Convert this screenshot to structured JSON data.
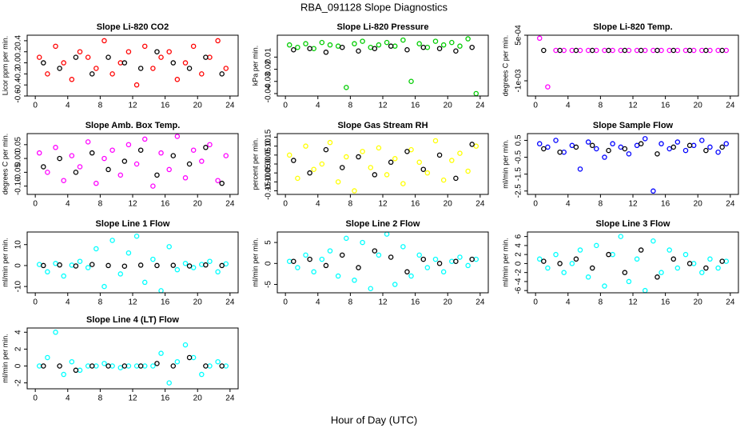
{
  "title": "RBA_091128  Slope Diagnostics",
  "xlabel": "Hour of Day (UTC)",
  "chart_data": [
    {
      "type": "scatter",
      "title": "Slope Li-820 CO2",
      "ylabel": "Licor ppm per min.",
      "xlim": [
        -1,
        25
      ],
      "xticks": [
        0,
        4,
        8,
        12,
        16,
        20,
        24
      ],
      "ylim": [
        -0.6,
        0.5
      ],
      "yticks": [
        -0.6,
        -0.4,
        -0.2,
        {
          "value": 0,
          "label": "0.0"
        },
        0.2,
        0.4
      ],
      "series": [
        {
          "color": "#ff0000",
          "x": [
            0.5,
            1.5,
            2.5,
            3.5,
            4.5,
            5.5,
            6.5,
            7.5,
            8.5,
            9.5,
            10.5,
            11.5,
            12.5,
            13.5,
            14.5,
            15.5,
            16.5,
            17.5,
            18.5,
            19.5,
            20.5,
            21.5,
            22.5,
            23.5
          ],
          "values": [
            0.1,
            -0.2,
            0.3,
            0.0,
            -0.3,
            0.2,
            0.1,
            -0.1,
            0.4,
            -0.2,
            0.0,
            0.2,
            -0.4,
            0.3,
            -0.1,
            0.1,
            0.2,
            -0.3,
            0.0,
            0.3,
            -0.2,
            0.1,
            0.4,
            -0.1
          ]
        },
        {
          "color": "#000000",
          "x": [
            1,
            3,
            5,
            7,
            9,
            11,
            13,
            15,
            17,
            19,
            21,
            23
          ],
          "values": [
            0.0,
            -0.1,
            0.1,
            -0.2,
            0.1,
            0.0,
            -0.1,
            0.2,
            0.0,
            -0.1,
            0.1,
            -0.2
          ]
        }
      ]
    },
    {
      "type": "scatter",
      "title": "Slope Li-820 Pressure",
      "ylabel": "kPa per min.",
      "xlim": [
        -1,
        25
      ],
      "xticks": [
        0,
        4,
        8,
        12,
        16,
        20,
        24
      ],
      "ylim": [
        -0.042,
        0.008
      ],
      "yticks": [
        -0.04,
        -0.03,
        -0.02,
        -0.01
      ],
      "series": [
        {
          "color": "#00cc00",
          "x": [
            0.5,
            1.5,
            2.5,
            3.5,
            4.5,
            5.5,
            6.5,
            7.5,
            8.5,
            9.5,
            10.5,
            11.5,
            12.5,
            13.5,
            14.5,
            15.5,
            16.5,
            17.5,
            18.5,
            19.5,
            20.5,
            21.5,
            22.5,
            23.5
          ],
          "values": [
            0.0,
            -0.002,
            0.001,
            -0.003,
            0.002,
            0.0,
            -0.001,
            -0.035,
            0.001,
            0.003,
            -0.002,
            0.0,
            0.002,
            -0.001,
            0.004,
            -0.03,
            0.001,
            -0.002,
            0.003,
            0.0,
            0.002,
            -0.001,
            0.005,
            -0.04
          ]
        },
        {
          "color": "#000000",
          "x": [
            1,
            3,
            5,
            7,
            9,
            11,
            13,
            15,
            17,
            19,
            21,
            23
          ],
          "values": [
            -0.004,
            -0.003,
            -0.006,
            -0.002,
            -0.005,
            -0.003,
            -0.001,
            -0.004,
            -0.002,
            -0.003,
            -0.005,
            -0.002
          ]
        }
      ]
    },
    {
      "type": "scatter",
      "title": "Slope Li-820 Temp.",
      "ylabel": "degrees C per min.",
      "xlim": [
        -1,
        25
      ],
      "xticks": [
        0,
        4,
        8,
        12,
        16,
        20,
        24
      ],
      "ylim": [
        -0.0015,
        0.0005
      ],
      "yticks": [
        {
          "value": -0.001,
          "label": "-1e-03"
        },
        {
          "value": 0.0005,
          "label": "5e-04"
        }
      ],
      "series": [
        {
          "color": "#ff00ff",
          "x": [
            0.5,
            1.5,
            2.5,
            3.5,
            4.5,
            5.5,
            6.5,
            7.5,
            8.5,
            9.5,
            10.5,
            11.5,
            12.5,
            13.5,
            14.5,
            15.5,
            16.5,
            17.5,
            18.5,
            19.5,
            20.5,
            21.5,
            22.5,
            23.5
          ],
          "values": [
            0.0004,
            -0.0012,
            0,
            0,
            0,
            0,
            0,
            0,
            0,
            0,
            0,
            0,
            0,
            0,
            0,
            0,
            0,
            0,
            0,
            0,
            0,
            0,
            0,
            0
          ]
        },
        {
          "color": "#000000",
          "x": [
            1,
            3,
            5,
            7,
            9,
            11,
            13,
            15,
            17,
            19,
            21,
            23
          ],
          "values": [
            0,
            0,
            0,
            0,
            0,
            0,
            0,
            0,
            0,
            0,
            0,
            0
          ]
        }
      ]
    },
    {
      "type": "scatter",
      "title": "Slope Amb. Box Temp.",
      "ylabel": "degrees C per min.",
      "xlim": [
        -1,
        25
      ],
      "xticks": [
        0,
        4,
        8,
        12,
        16,
        20,
        24
      ],
      "ylim": [
        -0.13,
        0.09
      ],
      "yticks": [
        {
          "value": -0.1,
          "label": "-0.10"
        },
        -0.05,
        {
          "value": 0,
          "label": "0.00"
        },
        0.05
      ],
      "series": [
        {
          "color": "#ff00ff",
          "x": [
            0.5,
            1.5,
            2.5,
            3.5,
            4.5,
            5.5,
            6.5,
            7.5,
            8.5,
            9.5,
            10.5,
            11.5,
            12.5,
            13.5,
            14.5,
            15.5,
            16.5,
            17.5,
            18.5,
            19.5,
            20.5,
            21.5,
            22.5,
            23.5
          ],
          "values": [
            0.02,
            -0.05,
            0.04,
            -0.08,
            0.01,
            -0.03,
            0.06,
            -0.09,
            0.0,
            0.03,
            -0.06,
            0.05,
            -0.02,
            0.07,
            -0.1,
            0.02,
            -0.04,
            0.08,
            -0.07,
            0.03,
            -0.01,
            0.05,
            -0.08,
            0.01
          ]
        },
        {
          "color": "#000000",
          "x": [
            1,
            3,
            5,
            7,
            9,
            11,
            13,
            15,
            17,
            19,
            21,
            23
          ],
          "values": [
            -0.03,
            0.0,
            -0.05,
            0.02,
            -0.04,
            -0.01,
            0.03,
            -0.06,
            0.01,
            -0.02,
            0.04,
            -0.09
          ]
        }
      ]
    },
    {
      "type": "scatter",
      "title": "Slope Gas Stream RH",
      "ylabel": "percent per min.",
      "xlim": [
        -1,
        25
      ],
      "xticks": [
        0,
        4,
        8,
        12,
        16,
        20,
        24
      ],
      "ylim": [
        -0.17,
        0.17
      ],
      "yticks": [
        -0.15,
        {
          "value": -0.1,
          "label": "-0.10"
        },
        -0.05,
        {
          "value": 0,
          "label": "0.00"
        },
        0.05,
        {
          "value": 0.1,
          "label": "0.10"
        },
        0.15
      ],
      "series": [
        {
          "color": "#ffff00",
          "x": [
            0.5,
            1.5,
            2.5,
            3.5,
            4.5,
            5.5,
            6.5,
            7.5,
            8.5,
            9.5,
            10.5,
            11.5,
            12.5,
            13.5,
            14.5,
            15.5,
            16.5,
            17.5,
            18.5,
            19.5,
            20.5,
            21.5,
            22.5,
            23.5
          ],
          "values": [
            0.05,
            -0.08,
            0.1,
            -0.03,
            0.0,
            0.12,
            -0.1,
            0.04,
            -0.15,
            0.07,
            -0.02,
            0.09,
            -0.06,
            0.03,
            -0.11,
            0.08,
            0.01,
            -0.05,
            0.13,
            -0.09,
            0.02,
            0.06,
            -0.04,
            0.1
          ]
        },
        {
          "color": "#000000",
          "x": [
            1,
            3,
            5,
            7,
            9,
            11,
            13,
            15,
            17,
            19,
            21,
            23
          ],
          "values": [
            0.02,
            -0.05,
            0.08,
            -0.02,
            0.04,
            -0.06,
            0.01,
            0.07,
            -0.03,
            0.05,
            -0.08,
            0.11
          ]
        }
      ]
    },
    {
      "type": "scatter",
      "title": "Slope Sample Flow",
      "ylabel": "ml/min per min.",
      "xlim": [
        -1,
        25
      ],
      "xticks": [
        0,
        4,
        8,
        12,
        16,
        20,
        24
      ],
      "ylim": [
        -2.7,
        0.9
      ],
      "yticks": [
        -2.5,
        -1.5,
        -0.5,
        0.5
      ],
      "series": [
        {
          "color": "#0000ff",
          "x": [
            0.5,
            1.5,
            2.5,
            3.5,
            4.5,
            5.5,
            6.5,
            7.5,
            8.5,
            9.5,
            10.5,
            11.5,
            12.5,
            13.5,
            14.5,
            15.5,
            16.5,
            17.5,
            18.5,
            19.5,
            20.5,
            21.5,
            22.5,
            23.5
          ],
          "values": [
            0.3,
            0.1,
            0.5,
            -0.2,
            0.2,
            -1.2,
            0.4,
            0.0,
            -0.5,
            0.3,
            0.1,
            -0.3,
            0.2,
            0.6,
            -2.5,
            0.3,
            0.0,
            0.4,
            -0.1,
            0.2,
            0.5,
            0.1,
            -0.2,
            0.3
          ]
        },
        {
          "color": "#000000",
          "x": [
            1,
            3,
            5,
            7,
            9,
            11,
            13,
            15,
            17,
            19,
            21,
            23
          ],
          "values": [
            0.0,
            -0.2,
            0.1,
            0.2,
            -0.1,
            0.0,
            0.3,
            -0.3,
            0.1,
            0.2,
            -0.1,
            0.1
          ]
        }
      ]
    },
    {
      "type": "scatter",
      "title": "Slope Line 1 Flow",
      "ylabel": "ml/min per min.",
      "xlim": [
        -1,
        25
      ],
      "xticks": [
        0,
        4,
        8,
        12,
        16,
        20,
        24
      ],
      "ylim": [
        -13,
        16
      ],
      "yticks": [
        -10,
        0,
        10
      ],
      "series": [
        {
          "color": "#00ffff",
          "x": [
            0.5,
            1.5,
            2.5,
            3.5,
            4.5,
            5.5,
            6.5,
            7.5,
            8.5,
            9.5,
            10.5,
            11.5,
            12.5,
            13.5,
            14.5,
            15.5,
            16.5,
            17.5,
            18.5,
            19.5,
            20.5,
            21.5,
            22.5,
            23.5
          ],
          "values": [
            0.5,
            -3,
            1,
            -5,
            0.2,
            2,
            -1,
            8,
            -10,
            12,
            -4,
            6,
            14,
            -8,
            3,
            -12,
            9,
            -2,
            1,
            -1,
            0.5,
            2,
            -3,
            0.8
          ]
        },
        {
          "color": "#000000",
          "x": [
            1,
            3,
            5,
            7,
            9,
            11,
            13,
            15,
            17,
            19,
            21,
            23
          ],
          "values": [
            0,
            0.3,
            -0.2,
            0.5,
            0,
            -0.3,
            0.2,
            0,
            0.1,
            -0.2,
            0.3,
            0
          ]
        }
      ]
    },
    {
      "type": "scatter",
      "title": "Slope Line 2 Flow",
      "ylabel": "ml/min per min.",
      "xlim": [
        -1,
        25
      ],
      "xticks": [
        0,
        4,
        8,
        12,
        16,
        20,
        24
      ],
      "ylim": [
        -7,
        7.5
      ],
      "yticks": [
        -5,
        0,
        5
      ],
      "series": [
        {
          "color": "#00ffff",
          "x": [
            0.5,
            1.5,
            2.5,
            3.5,
            4.5,
            5.5,
            6.5,
            7.5,
            8.5,
            9.5,
            10.5,
            11.5,
            12.5,
            13.5,
            14.5,
            15.5,
            16.5,
            17.5,
            18.5,
            19.5,
            20.5,
            21.5,
            22.5,
            23.5
          ],
          "values": [
            0.5,
            -1,
            2,
            -2,
            1,
            3,
            -3,
            6,
            -4,
            5,
            -6,
            2,
            7,
            -5,
            4,
            -3,
            2,
            -1,
            1,
            -2,
            0.5,
            1.5,
            -0.5,
            1
          ]
        },
        {
          "color": "#000000",
          "x": [
            1,
            3,
            5,
            7,
            9,
            11,
            13,
            15,
            17,
            19,
            21,
            23
          ],
          "values": [
            0.5,
            1,
            -0.5,
            2,
            -1,
            3,
            1.5,
            -2,
            1,
            0,
            0.5,
            1
          ]
        }
      ]
    },
    {
      "type": "scatter",
      "title": "Slope Line 3 Flow",
      "ylabel": "ml/min per min.",
      "xlim": [
        -1,
        25
      ],
      "xticks": [
        0,
        4,
        8,
        12,
        16,
        20,
        24
      ],
      "ylim": [
        -6.5,
        7
      ],
      "yticks": [
        -6,
        -4,
        -2,
        0,
        2,
        4,
        6
      ],
      "series": [
        {
          "color": "#00ffff",
          "x": [
            0.5,
            1.5,
            2.5,
            3.5,
            4.5,
            5.5,
            6.5,
            7.5,
            8.5,
            9.5,
            10.5,
            11.5,
            12.5,
            13.5,
            14.5,
            15.5,
            16.5,
            17.5,
            18.5,
            19.5,
            20.5,
            21.5,
            22.5,
            23.5
          ],
          "values": [
            1,
            -1,
            2,
            -2,
            0,
            3,
            -3,
            4,
            -5,
            2,
            6,
            -4,
            1,
            -6,
            5,
            -2,
            3,
            -1,
            2,
            0,
            -2,
            1,
            -1,
            0.5
          ]
        },
        {
          "color": "#000000",
          "x": [
            1,
            3,
            5,
            7,
            9,
            11,
            13,
            15,
            17,
            19,
            21,
            23
          ],
          "values": [
            0.5,
            0,
            1,
            -1,
            2,
            -2,
            3,
            -3,
            1,
            0,
            -1,
            0.5
          ]
        }
      ]
    },
    {
      "type": "scatter",
      "title": "Slope Line 4 (LT) Flow",
      "ylabel": "ml/min per min.",
      "xlim": [
        -1,
        25
      ],
      "xticks": [
        0,
        4,
        8,
        12,
        16,
        20,
        24
      ],
      "ylim": [
        -2.7,
        4.5
      ],
      "yticks": [
        -2,
        0,
        2,
        4
      ],
      "series": [
        {
          "color": "#00ffff",
          "x": [
            0.5,
            1.5,
            2.5,
            3.5,
            4.5,
            5.5,
            6.5,
            7.5,
            8.5,
            9.5,
            10.5,
            11.5,
            12.5,
            13.5,
            14.5,
            15.5,
            16.5,
            17.5,
            18.5,
            19.5,
            20.5,
            21.5,
            22.5,
            23.5
          ],
          "values": [
            0,
            1,
            4,
            -1,
            0.5,
            -0.5,
            0,
            0,
            0.3,
            0,
            -0.2,
            0,
            0,
            0,
            0,
            1.5,
            -2,
            0.5,
            2.5,
            1,
            -1,
            0,
            0.5,
            0
          ]
        },
        {
          "color": "#000000",
          "x": [
            1,
            3,
            5,
            7,
            9,
            11,
            13,
            15,
            17,
            19,
            21,
            23
          ],
          "values": [
            0,
            0,
            -0.5,
            0,
            0,
            0,
            0,
            0.3,
            0,
            1,
            0,
            0
          ]
        }
      ]
    }
  ]
}
